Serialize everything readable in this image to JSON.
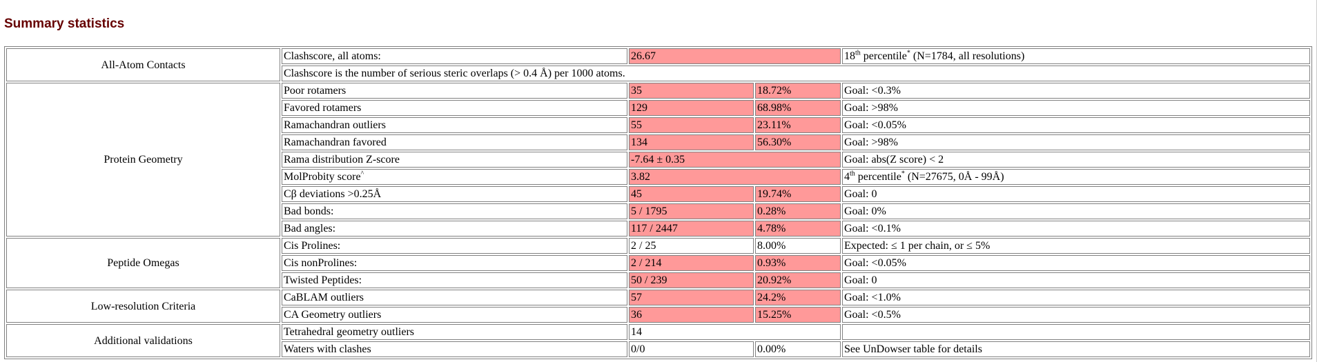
{
  "title": "Summary statistics",
  "groups": {
    "all_atom": "All-Atom Contacts",
    "protein_geometry": "Protein Geometry",
    "peptide_omegas": "Peptide Omegas",
    "low_res": "Low-resolution Criteria",
    "additional": "Additional validations"
  },
  "clashscore": {
    "label": "Clashscore, all atoms:",
    "value": "26.67",
    "percentile_num": "18",
    "percentile_sup": "th",
    "percentile_text": " percentile",
    "percentile_star": "*",
    "percentile_note": " (N=1784, all resolutions)",
    "description": "Clashscore is the number of serious steric overlaps (> 0.4 Å) per 1000 atoms."
  },
  "rows": {
    "poor_rotamers": {
      "label": "Poor rotamers",
      "count": "35",
      "pct": "18.72%",
      "goal": "Goal: <0.3%"
    },
    "favored_rotamers": {
      "label": "Favored rotamers",
      "count": "129",
      "pct": "68.98%",
      "goal": "Goal: >98%"
    },
    "rama_outliers": {
      "label": "Ramachandran outliers",
      "count": "55",
      "pct": "23.11%",
      "goal": "Goal: <0.05%"
    },
    "rama_favored": {
      "label": "Ramachandran favored",
      "count": "134",
      "pct": "56.30%",
      "goal": "Goal: >98%"
    },
    "rama_z": {
      "label": "Rama distribution Z-score",
      "value": "-7.64 ± 0.35",
      "goal": "Goal: abs(Z score) < 2"
    },
    "molprobity": {
      "label": "MolProbity score",
      "label_sup": "^",
      "value": "3.82",
      "percentile_num": "4",
      "percentile_sup": "th",
      "percentile_text": " percentile",
      "percentile_star": "*",
      "percentile_note": " (N=27675, 0Å - 99Å)"
    },
    "cb_dev": {
      "label": "Cβ deviations >0.25Å",
      "count": "45",
      "pct": "19.74%",
      "goal": "Goal: 0"
    },
    "bad_bonds": {
      "label": "Bad bonds:",
      "count": "5 / 1795",
      "pct": "0.28%",
      "goal": "Goal: 0%"
    },
    "bad_angles": {
      "label": "Bad angles:",
      "count": "117 / 2447",
      "pct": "4.78%",
      "goal": "Goal: <0.1%"
    },
    "cis_prolines": {
      "label": "Cis Prolines:",
      "count": "2 / 25",
      "pct": "8.00%",
      "goal": "Expected:  ≤ 1 per chain, or  ≤ 5%"
    },
    "cis_nonprolines": {
      "label": "Cis nonProlines:",
      "count": "2 / 214",
      "pct": "0.93%",
      "goal": "Goal: <0.05%"
    },
    "twisted": {
      "label": "Twisted Peptides:",
      "count": "50 / 239",
      "pct": "20.92%",
      "goal": "Goal: 0"
    },
    "cablam": {
      "label": "CaBLAM outliers",
      "count": "57",
      "pct": "24.2%",
      "goal": "Goal: <1.0%"
    },
    "ca_geom": {
      "label": "CA Geometry outliers",
      "count": "36",
      "pct": "15.25%",
      "goal": "Goal: <0.5%"
    },
    "tetrahedral": {
      "label": "Tetrahedral geometry outliers",
      "value": "14",
      "goal": ""
    },
    "waters": {
      "label": "Waters with clashes",
      "count": "0/0",
      "pct": "0.00%",
      "goal": "See UnDowser table for details"
    }
  },
  "colors": {
    "title": "#660000",
    "bad_cell": "#ff9999",
    "border": "#808080"
  }
}
